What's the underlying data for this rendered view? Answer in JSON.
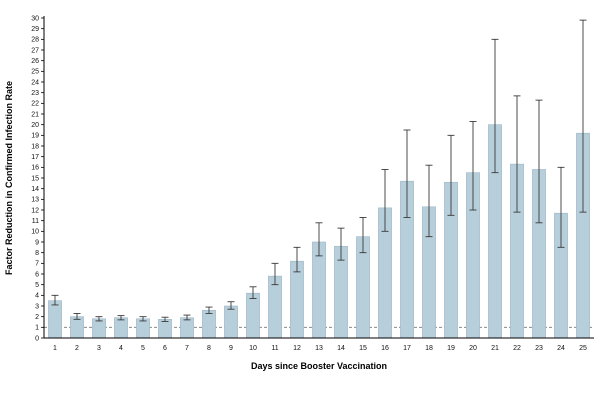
{
  "chart_data": {
    "type": "bar",
    "title": "",
    "xlabel": "Days since Booster Vaccination",
    "ylabel": "Factor Reduction in Confirmed Infection Rate",
    "categories": [
      1,
      2,
      3,
      4,
      5,
      6,
      7,
      8,
      9,
      10,
      11,
      12,
      13,
      14,
      15,
      16,
      17,
      18,
      19,
      20,
      21,
      22,
      23,
      24,
      25
    ],
    "values": [
      3.5,
      2.0,
      1.8,
      1.9,
      1.8,
      1.75,
      1.9,
      2.6,
      3.0,
      4.2,
      5.8,
      7.2,
      9.0,
      8.6,
      9.5,
      12.2,
      14.7,
      12.3,
      14.6,
      15.5,
      20.0,
      16.3,
      15.8,
      11.7,
      19.2
    ],
    "error_low": [
      3.1,
      1.75,
      1.6,
      1.7,
      1.6,
      1.55,
      1.7,
      2.3,
      2.7,
      3.7,
      5.0,
      6.2,
      7.7,
      7.3,
      8.0,
      10.0,
      11.3,
      9.5,
      11.5,
      12.0,
      15.5,
      11.8,
      10.8,
      8.5,
      11.8
    ],
    "error_high": [
      4.0,
      2.3,
      2.0,
      2.1,
      2.0,
      1.95,
      2.15,
      2.9,
      3.4,
      4.8,
      7.0,
      8.5,
      10.8,
      10.3,
      11.3,
      15.8,
      19.5,
      16.2,
      19.0,
      20.3,
      28.0,
      22.7,
      22.3,
      16.0,
      29.8
    ],
    "reference_line_y": 1,
    "ylim": [
      0,
      30
    ],
    "ytick_step": 1,
    "grid": false,
    "legend_position": "none",
    "bar_color": "#b7cedb",
    "bar_border_color": "#9db8c7",
    "error_bar_color": "#3a3a3a",
    "reference_line_color": "#777777",
    "axis_color": "#000000"
  }
}
